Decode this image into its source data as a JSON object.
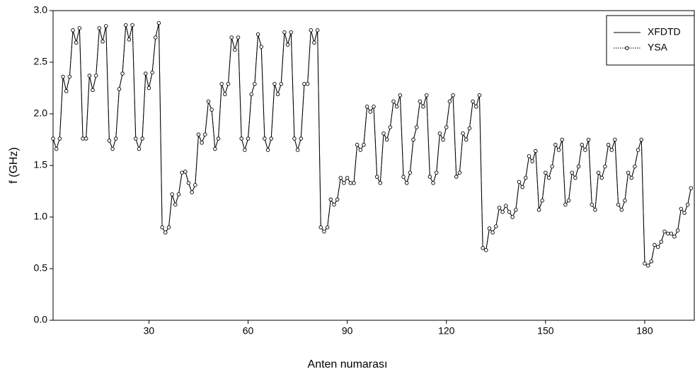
{
  "chart_data": {
    "type": "line",
    "xlabel": "Anten numarası",
    "ylabel": "f (GHz)",
    "x": [
      1,
      2,
      3,
      4,
      5,
      6,
      7,
      8,
      9,
      10,
      11,
      12,
      13,
      14,
      15,
      16,
      17,
      18,
      19,
      20,
      21,
      22,
      23,
      24,
      25,
      26,
      27,
      28,
      29,
      30,
      31,
      32,
      33,
      34,
      35,
      36,
      37,
      38,
      39,
      40,
      41,
      42,
      43,
      44,
      45,
      46,
      47,
      48,
      49,
      50,
      51,
      52,
      53,
      54,
      55,
      56,
      57,
      58,
      59,
      60,
      61,
      62,
      63,
      64,
      65,
      66,
      67,
      68,
      69,
      70,
      71,
      72,
      73,
      74,
      75,
      76,
      77,
      78,
      79,
      80,
      81,
      82,
      83,
      84,
      85,
      86,
      87,
      88,
      89,
      90,
      91,
      92,
      93,
      94,
      95,
      96,
      97,
      98,
      99,
      100,
      101,
      102,
      103,
      104,
      105,
      106,
      107,
      108,
      109,
      110,
      111,
      112,
      113,
      114,
      115,
      116,
      117,
      118,
      119,
      120,
      121,
      122,
      123,
      124,
      125,
      126,
      127,
      128,
      129,
      130,
      131,
      132,
      133,
      134,
      135,
      136,
      137,
      138,
      139,
      140,
      141,
      142,
      143,
      144,
      145,
      146,
      147,
      148,
      149,
      150,
      151,
      152,
      153,
      154,
      155,
      156,
      157,
      158,
      159,
      160,
      161,
      162,
      163,
      164,
      165,
      166,
      167,
      168,
      169,
      170,
      171,
      172,
      173,
      174,
      175,
      176,
      177,
      178,
      179,
      180,
      181,
      182,
      183,
      184,
      185,
      186,
      187,
      188,
      189,
      190,
      191,
      192,
      193,
      194
    ],
    "series": [
      {
        "name": "XFDTD",
        "color": "#000000",
        "linestyle": "solid",
        "marker": "none",
        "values": [
          1.76,
          1.66,
          1.76,
          2.36,
          2.22,
          2.36,
          2.81,
          2.69,
          2.83,
          1.76,
          1.76,
          2.37,
          2.23,
          2.37,
          2.83,
          2.7,
          2.85,
          1.74,
          1.66,
          1.76,
          2.24,
          2.39,
          2.86,
          2.72,
          2.86,
          1.76,
          1.66,
          1.76,
          2.39,
          2.25,
          2.4,
          2.74,
          2.88,
          0.9,
          0.85,
          0.9,
          1.22,
          1.12,
          1.22,
          1.43,
          1.44,
          1.33,
          1.24,
          1.31,
          1.8,
          1.72,
          1.8,
          2.12,
          2.04,
          1.66,
          1.76,
          2.29,
          2.19,
          2.29,
          2.74,
          2.62,
          2.74,
          1.76,
          1.65,
          1.76,
          2.19,
          2.29,
          2.77,
          2.65,
          1.76,
          1.65,
          1.76,
          2.29,
          2.19,
          2.29,
          2.79,
          2.67,
          2.79,
          1.76,
          1.65,
          1.76,
          2.29,
          2.29,
          2.81,
          2.69,
          2.81,
          0.9,
          0.86,
          0.9,
          1.17,
          1.12,
          1.17,
          1.38,
          1.33,
          1.38,
          1.33,
          1.33,
          1.7,
          1.65,
          1.7,
          2.07,
          2.02,
          2.07,
          1.39,
          1.33,
          1.81,
          1.75,
          1.87,
          2.12,
          2.07,
          2.18,
          1.39,
          1.33,
          1.43,
          1.75,
          1.87,
          2.12,
          2.07,
          2.18,
          1.39,
          1.33,
          1.43,
          1.81,
          1.75,
          1.87,
          2.12,
          2.18,
          1.39,
          1.43,
          1.81,
          1.75,
          1.86,
          2.12,
          2.07,
          2.18,
          0.7,
          0.68,
          0.89,
          0.85,
          0.91,
          1.09,
          1.05,
          1.11,
          1.05,
          1.0,
          1.07,
          1.34,
          1.29,
          1.38,
          1.59,
          1.54,
          1.64,
          1.07,
          1.16,
          1.43,
          1.38,
          1.49,
          1.7,
          1.65,
          1.75,
          1.12,
          1.16,
          1.43,
          1.38,
          1.49,
          1.7,
          1.65,
          1.75,
          1.12,
          1.07,
          1.43,
          1.38,
          1.49,
          1.7,
          1.65,
          1.75,
          1.12,
          1.07,
          1.16,
          1.43,
          1.38,
          1.49,
          1.65,
          1.75,
          0.55,
          0.53,
          0.57,
          0.73,
          0.71,
          0.76,
          0.86,
          0.84,
          0.84,
          0.81,
          0.87,
          1.08,
          1.04,
          1.12,
          1.28
        ]
      },
      {
        "name": "YSA",
        "color": "#000000",
        "linestyle": "dotted",
        "marker": "circle",
        "values": [
          1.76,
          1.66,
          1.76,
          2.36,
          2.22,
          2.36,
          2.81,
          2.69,
          2.83,
          1.76,
          1.76,
          2.37,
          2.23,
          2.37,
          2.83,
          2.7,
          2.85,
          1.74,
          1.66,
          1.76,
          2.24,
          2.39,
          2.86,
          2.72,
          2.86,
          1.76,
          1.66,
          1.76,
          2.39,
          2.25,
          2.4,
          2.74,
          2.88,
          0.9,
          0.85,
          0.9,
          1.22,
          1.12,
          1.22,
          1.43,
          1.44,
          1.33,
          1.24,
          1.31,
          1.8,
          1.72,
          1.8,
          2.12,
          2.04,
          1.66,
          1.76,
          2.29,
          2.19,
          2.29,
          2.74,
          2.62,
          2.74,
          1.76,
          1.65,
          1.76,
          2.19,
          2.29,
          2.77,
          2.65,
          1.76,
          1.65,
          1.76,
          2.29,
          2.19,
          2.29,
          2.79,
          2.67,
          2.79,
          1.76,
          1.65,
          1.76,
          2.29,
          2.29,
          2.81,
          2.69,
          2.81,
          0.9,
          0.86,
          0.9,
          1.17,
          1.12,
          1.17,
          1.38,
          1.33,
          1.38,
          1.33,
          1.33,
          1.7,
          1.65,
          1.7,
          2.07,
          2.02,
          2.07,
          1.39,
          1.33,
          1.81,
          1.75,
          1.87,
          2.12,
          2.07,
          2.18,
          1.39,
          1.33,
          1.43,
          1.75,
          1.87,
          2.12,
          2.07,
          2.18,
          1.39,
          1.33,
          1.43,
          1.81,
          1.75,
          1.87,
          2.12,
          2.18,
          1.39,
          1.43,
          1.81,
          1.75,
          1.86,
          2.12,
          2.07,
          2.18,
          0.7,
          0.68,
          0.89,
          0.85,
          0.91,
          1.09,
          1.05,
          1.11,
          1.05,
          1.0,
          1.07,
          1.34,
          1.29,
          1.38,
          1.59,
          1.54,
          1.64,
          1.07,
          1.16,
          1.43,
          1.38,
          1.49,
          1.7,
          1.65,
          1.75,
          1.12,
          1.16,
          1.43,
          1.38,
          1.49,
          1.7,
          1.65,
          1.75,
          1.12,
          1.07,
          1.43,
          1.38,
          1.49,
          1.7,
          1.65,
          1.75,
          1.12,
          1.07,
          1.16,
          1.43,
          1.38,
          1.49,
          1.65,
          1.75,
          0.55,
          0.53,
          0.57,
          0.73,
          0.71,
          0.76,
          0.86,
          0.84,
          0.84,
          0.81,
          0.87,
          1.08,
          1.04,
          1.12,
          1.28
        ]
      }
    ],
    "xlim": [
      1,
      195
    ],
    "xticks": [
      30,
      60,
      90,
      120,
      150,
      180
    ],
    "ylim": [
      0,
      3
    ],
    "yticks": [
      {
        "value": 0,
        "label": "0.0"
      },
      {
        "value": 0.5,
        "label": "0.5"
      },
      {
        "value": 1,
        "label": "1.0"
      },
      {
        "value": 1.5,
        "label": "1.5"
      },
      {
        "value": 2,
        "label": "2.0"
      },
      {
        "value": 2.5,
        "label": "2.5"
      },
      {
        "value": 3,
        "label": "3.0"
      }
    ],
    "grid": false,
    "legend": "upper right"
  }
}
